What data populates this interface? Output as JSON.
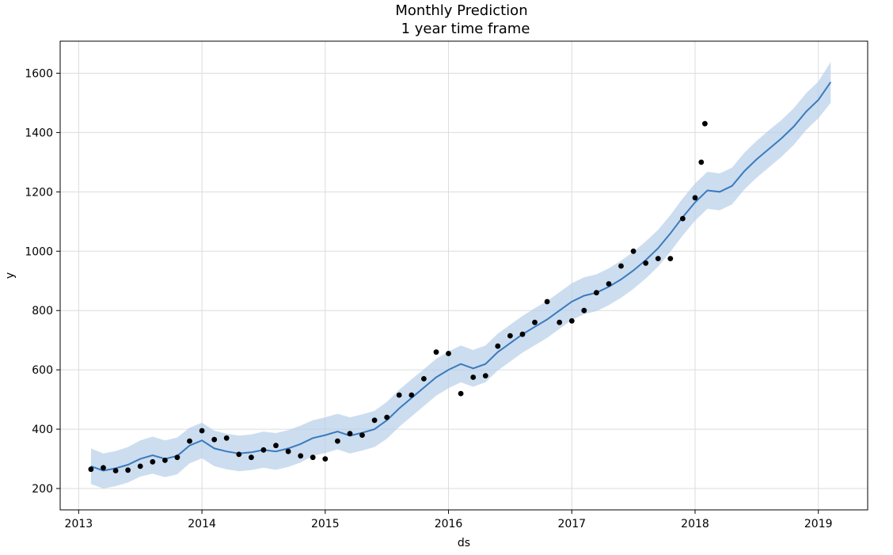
{
  "chart_data": {
    "type": "line",
    "title": "Monthly Prediction",
    "subtitle": "1 year time frame",
    "xlabel": "ds",
    "ylabel": "y",
    "xlim": [
      2012.85,
      2019.4
    ],
    "ylim": [
      128,
      1708
    ],
    "grid": true,
    "x_ticks": [
      {
        "value": 2013,
        "label": "2013"
      },
      {
        "value": 2014,
        "label": "2014"
      },
      {
        "value": 2015,
        "label": "2015"
      },
      {
        "value": 2016,
        "label": "2016"
      },
      {
        "value": 2017,
        "label": "2017"
      },
      {
        "value": 2018,
        "label": "2018"
      },
      {
        "value": 2019,
        "label": "2019"
      }
    ],
    "y_ticks": [
      {
        "value": 200,
        "label": "200"
      },
      {
        "value": 400,
        "label": "400"
      },
      {
        "value": 600,
        "label": "600"
      },
      {
        "value": 800,
        "label": "800"
      },
      {
        "value": 1000,
        "label": "1000"
      },
      {
        "value": 1200,
        "label": "1200"
      },
      {
        "value": 1400,
        "label": "1400"
      },
      {
        "value": 1600,
        "label": "1600"
      }
    ],
    "colors": {
      "forecast": "#3a7bbf",
      "band": "#b7cfe8",
      "observed": "#000000"
    },
    "series": [
      {
        "type": "line",
        "x": [
          2013.1,
          2013.2,
          2013.3,
          2013.4,
          2013.5,
          2013.6,
          2013.7,
          2013.8,
          2013.9,
          2014.0,
          2014.1,
          2014.2,
          2014.3,
          2014.4,
          2014.5,
          2014.6,
          2014.7,
          2014.8,
          2014.9,
          2015.0,
          2015.1,
          2015.2,
          2015.3,
          2015.4,
          2015.5,
          2015.6,
          2015.7,
          2015.8,
          2015.9,
          2016.0,
          2016.1,
          2016.2,
          2016.3,
          2016.4,
          2016.5,
          2016.6,
          2016.7,
          2016.8,
          2016.9,
          2017.0,
          2017.1,
          2017.2,
          2017.3,
          2017.4,
          2017.5,
          2017.6,
          2017.7,
          2017.8,
          2017.9,
          2018.0,
          2018.1,
          2018.2,
          2018.3,
          2018.4,
          2018.5,
          2018.6,
          2018.7,
          2018.8,
          2018.9,
          2019.0,
          2019.1
        ],
        "y": [
          275,
          260,
          268,
          280,
          300,
          312,
          300,
          310,
          345,
          362,
          335,
          325,
          318,
          322,
          330,
          325,
          335,
          350,
          370,
          380,
          392,
          378,
          388,
          400,
          430,
          470,
          505,
          540,
          575,
          600,
          620,
          605,
          620,
          660,
          690,
          720,
          745,
          770,
          800,
          830,
          850,
          860,
          880,
          905,
          935,
          970,
          1010,
          1060,
          1115,
          1165,
          1205,
          1200,
          1220,
          1270,
          1310,
          1345,
          1380,
          1420,
          1470,
          1510,
          1570
        ]
      },
      {
        "type": "band",
        "x": [
          2013.1,
          2013.2,
          2013.3,
          2013.4,
          2013.5,
          2013.6,
          2013.7,
          2013.8,
          2013.9,
          2014.0,
          2014.1,
          2014.2,
          2014.3,
          2014.4,
          2014.5,
          2014.6,
          2014.7,
          2014.8,
          2014.9,
          2015.0,
          2015.1,
          2015.2,
          2015.3,
          2015.4,
          2015.5,
          2015.6,
          2015.7,
          2015.8,
          2015.9,
          2016.0,
          2016.1,
          2016.2,
          2016.3,
          2016.4,
          2016.5,
          2016.6,
          2016.7,
          2016.8,
          2016.9,
          2017.0,
          2017.1,
          2017.2,
          2017.3,
          2017.4,
          2017.5,
          2017.6,
          2017.7,
          2017.8,
          2017.9,
          2018.0,
          2018.1,
          2018.2,
          2018.3,
          2018.4,
          2018.5,
          2018.6,
          2018.7,
          2018.8,
          2018.9,
          2019.0,
          2019.1
        ],
        "upper": [
          335,
          318,
          326,
          340,
          362,
          375,
          362,
          372,
          405,
          422,
          395,
          385,
          378,
          382,
          392,
          387,
          397,
          412,
          430,
          440,
          452,
          440,
          450,
          462,
          492,
          533,
          568,
          602,
          637,
          662,
          682,
          667,
          682,
          722,
          752,
          782,
          808,
          832,
          862,
          892,
          912,
          922,
          942,
          968,
          998,
          1033,
          1072,
          1122,
          1178,
          1228,
          1268,
          1262,
          1282,
          1332,
          1372,
          1408,
          1442,
          1482,
          1532,
          1572,
          1638
        ],
        "lower": [
          215,
          200,
          208,
          220,
          240,
          250,
          238,
          248,
          285,
          302,
          275,
          265,
          258,
          262,
          270,
          263,
          273,
          288,
          310,
          320,
          332,
          318,
          328,
          340,
          368,
          408,
          443,
          478,
          513,
          538,
          558,
          543,
          558,
          598,
          628,
          658,
          683,
          708,
          738,
          768,
          788,
          798,
          818,
          843,
          873,
          908,
          948,
          998,
          1053,
          1103,
          1143,
          1138,
          1158,
          1208,
          1248,
          1283,
          1318,
          1358,
          1408,
          1448,
          1500
        ]
      },
      {
        "type": "scatter",
        "x": [
          2013.1,
          2013.2,
          2013.3,
          2013.4,
          2013.5,
          2013.6,
          2013.7,
          2013.8,
          2013.9,
          2014.0,
          2014.1,
          2014.2,
          2014.3,
          2014.4,
          2014.5,
          2014.6,
          2014.7,
          2014.8,
          2014.9,
          2015.0,
          2015.1,
          2015.2,
          2015.3,
          2015.4,
          2015.5,
          2015.6,
          2015.7,
          2015.8,
          2015.9,
          2016.0,
          2016.1,
          2016.2,
          2016.3,
          2016.4,
          2016.5,
          2016.6,
          2016.7,
          2016.8,
          2016.9,
          2017.0,
          2017.1,
          2017.2,
          2017.3,
          2017.4,
          2017.5,
          2017.6,
          2017.7,
          2017.8,
          2017.9,
          2018.0,
          2018.05,
          2018.08
        ],
        "y": [
          265,
          270,
          260,
          262,
          275,
          290,
          295,
          305,
          360,
          395,
          365,
          370,
          315,
          305,
          330,
          345,
          325,
          310,
          305,
          300,
          360,
          385,
          380,
          430,
          440,
          515,
          515,
          570,
          660,
          655,
          520,
          575,
          580,
          680,
          715,
          720,
          760,
          830,
          760,
          765,
          800,
          860,
          890,
          950,
          1000,
          960,
          975,
          975,
          1110,
          1180,
          1300,
          1430
        ]
      }
    ]
  }
}
